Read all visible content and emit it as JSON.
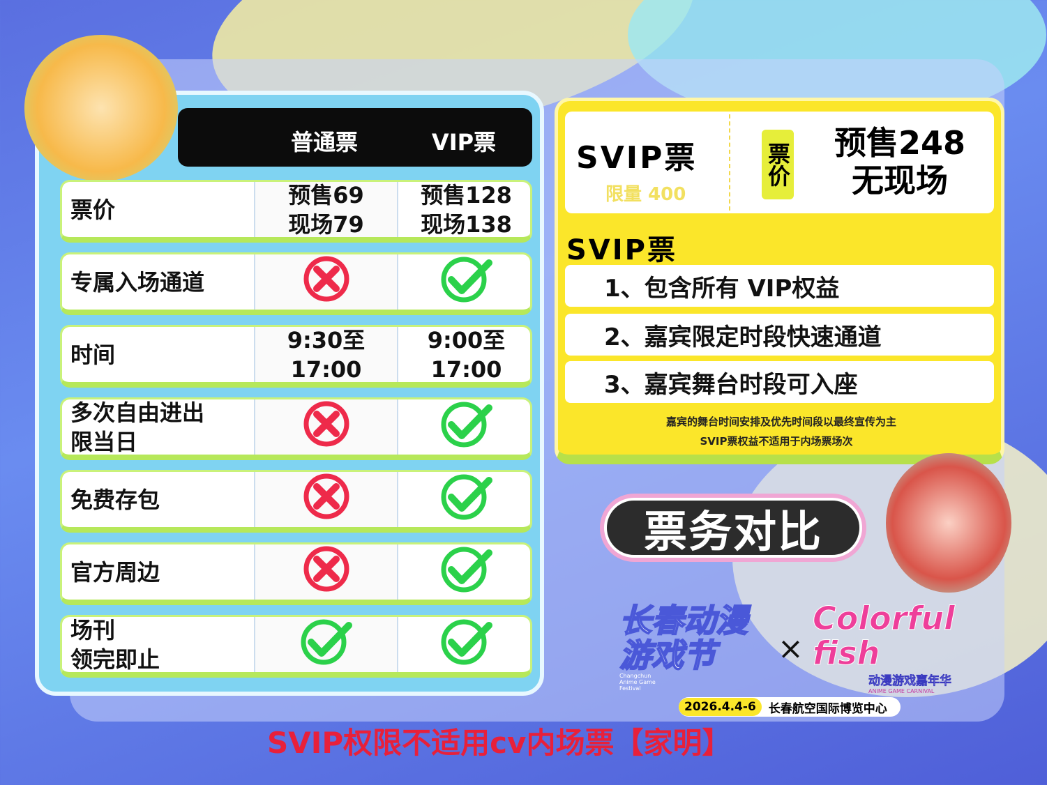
{
  "colors": {
    "accent_yellow": "#fbe62a",
    "check_green": "#2bd14a",
    "cross_red": "#ee2a4a",
    "footer_red": "#e8203a"
  },
  "table": {
    "headers": [
      "普通票",
      "VIP票"
    ],
    "rows": [
      {
        "label": [
          "票价"
        ],
        "normal": [
          "预售69",
          "现场79"
        ],
        "vip": [
          "预售128",
          "现场138"
        ]
      },
      {
        "label": [
          "专属入场通道"
        ],
        "normal": "cross-icon",
        "vip": "check-icon"
      },
      {
        "label": [
          "时间"
        ],
        "normal": [
          "9:30至",
          "17:00"
        ],
        "vip": [
          "9:00至",
          "17:00"
        ]
      },
      {
        "label": [
          "多次自由进出",
          "限当日"
        ],
        "normal": "cross-icon",
        "vip": "check-icon"
      },
      {
        "label": [
          "免费存包"
        ],
        "normal": "cross-icon",
        "vip": "check-icon"
      },
      {
        "label": [
          "官方周边"
        ],
        "normal": "cross-icon",
        "vip": "check-icon"
      },
      {
        "label": [
          "场刊",
          "领完即止"
        ],
        "normal": "check-icon",
        "vip": "check-icon"
      }
    ]
  },
  "svip": {
    "title": "SVIP票",
    "limit": "限量 400",
    "price_tag": "票价",
    "price_line1": "预售248",
    "price_line2": "无现场",
    "benefits_title": "SVIP票",
    "benefits": [
      "1、包含所有 VIP权益",
      "2、嘉宾限定时段快速通道",
      "3、嘉宾舞台时段可入座"
    ],
    "notes": [
      "嘉宾的舞台时间安排及优先时间段以最终宣传为主",
      "SVIP票权益不适用于内场票场次"
    ]
  },
  "banner": "票务对比",
  "logo": {
    "festival": "长春动漫游戏节",
    "festival_en": "Changchun Anime Game Festival",
    "x": "×",
    "partner": "Colorful fish",
    "partner_cn": "动漫游戏嘉年华",
    "partner_en": "ANIME GAME CARNIVAL",
    "date": "2026.4.4-6",
    "venue": "长春航空国际博览中心"
  },
  "footer": "SVIP权限不适用cv内场票【家明】"
}
